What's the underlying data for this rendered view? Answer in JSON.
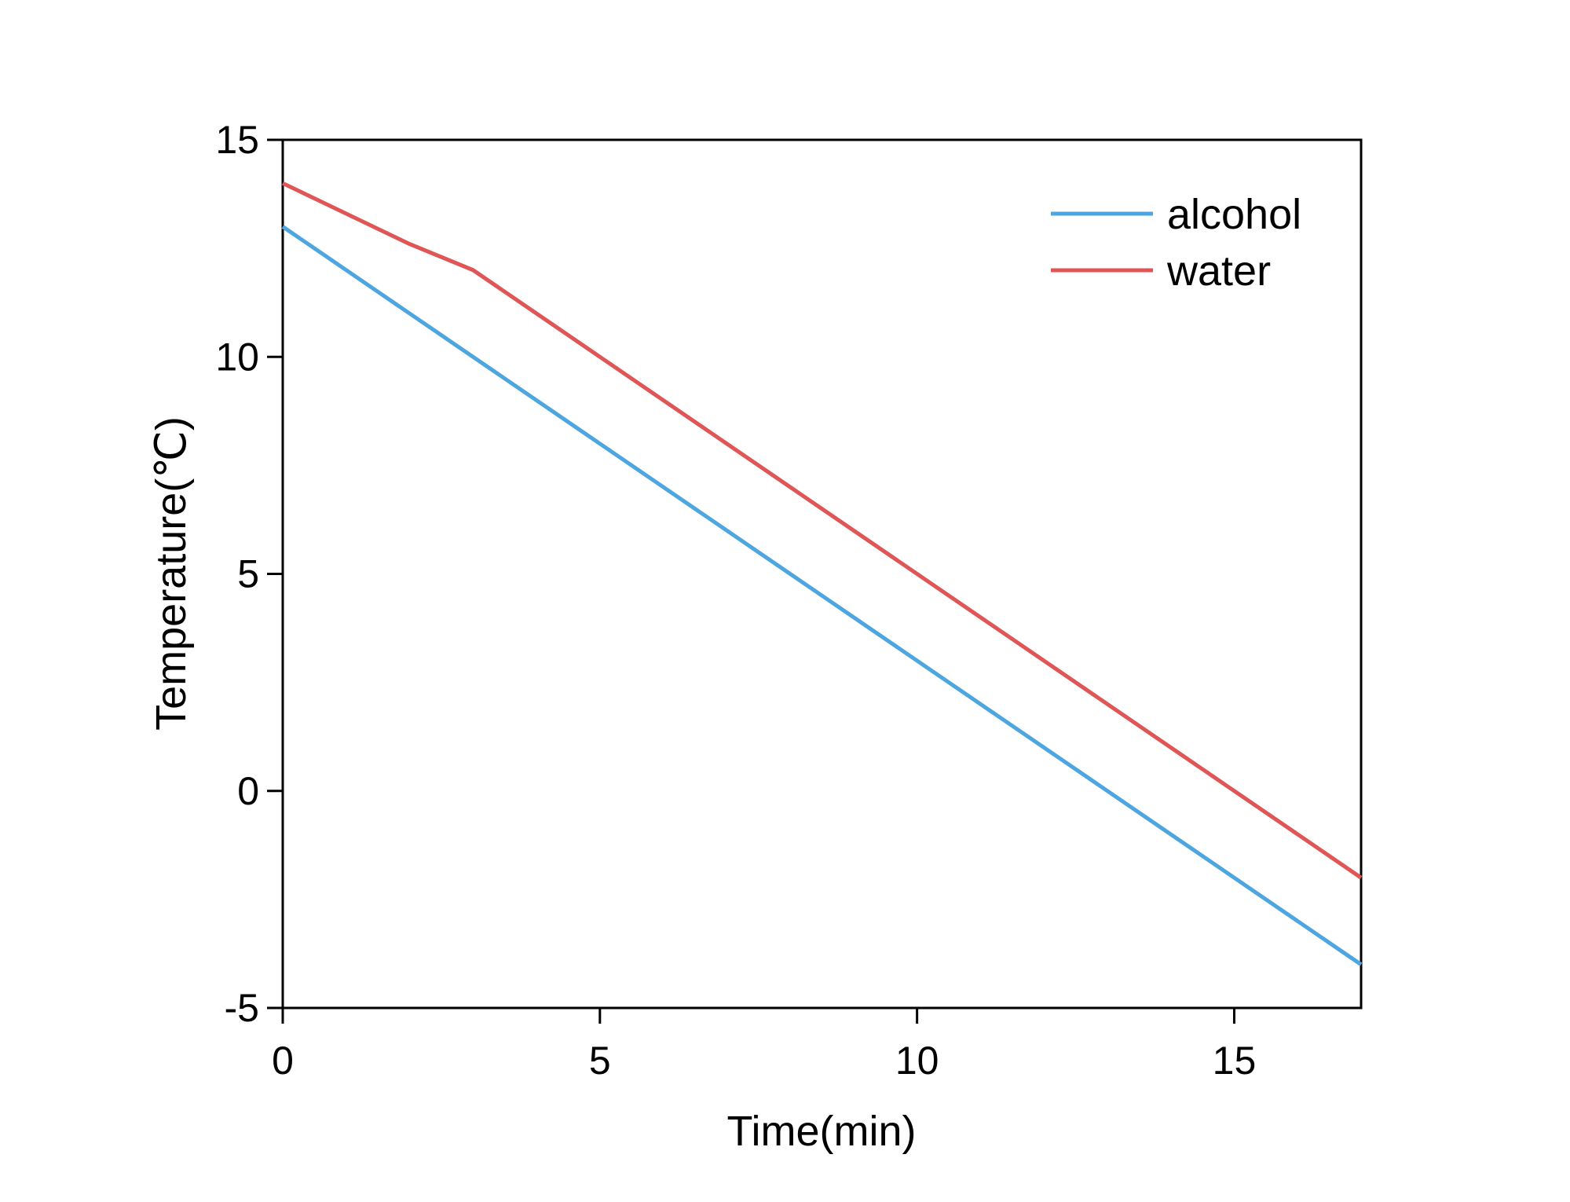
{
  "chart_data": {
    "type": "line",
    "title": "",
    "xlabel": "Time(min)",
    "ylabel": "Temperature(℃)",
    "xlim": [
      0,
      17
    ],
    "ylim": [
      -5,
      15
    ],
    "xticks": [
      0,
      5,
      10,
      15
    ],
    "yticks": [
      -5,
      0,
      5,
      10,
      15
    ],
    "grid": false,
    "legend_position": "top-right",
    "series": [
      {
        "name": "alcohol",
        "color": "#4ea6e0",
        "x": [
          0,
          17
        ],
        "y": [
          13,
          -4
        ]
      },
      {
        "name": "water",
        "color": "#e05555",
        "x": [
          0,
          2,
          3,
          17
        ],
        "y": [
          14,
          12.6,
          12,
          -2
        ]
      }
    ]
  }
}
